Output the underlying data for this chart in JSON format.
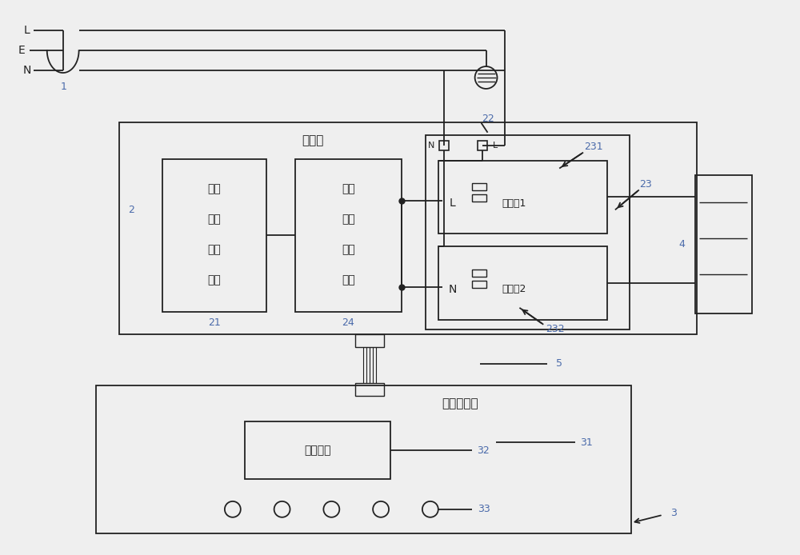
{
  "bg_color": "#f0f0f0",
  "line_color": "#222222",
  "label_color": "#4a6aaa",
  "figsize": [
    10.0,
    6.94
  ],
  "dpi": 100,
  "plug_label": "1",
  "cb_label": "控制板",
  "b21_lines": [
    "电子",
    "开关",
    "控制",
    "电路"
  ],
  "b21_num": "21",
  "b24_lines": [
    "光耦",
    "检测",
    "反馈",
    "电路"
  ],
  "b24_num": "24",
  "r1_text": "L继电器1",
  "r1_num": "231",
  "r2_text": "N继电器2",
  "r2_num": "232",
  "outer23_num": "23",
  "num2": "2",
  "num22": "22",
  "num4": "4",
  "num5": "5",
  "op_label": "操作显示板",
  "mc_label": "主控芯片",
  "mc_num": "32",
  "num31": "31",
  "num3": "3",
  "num33": "33"
}
